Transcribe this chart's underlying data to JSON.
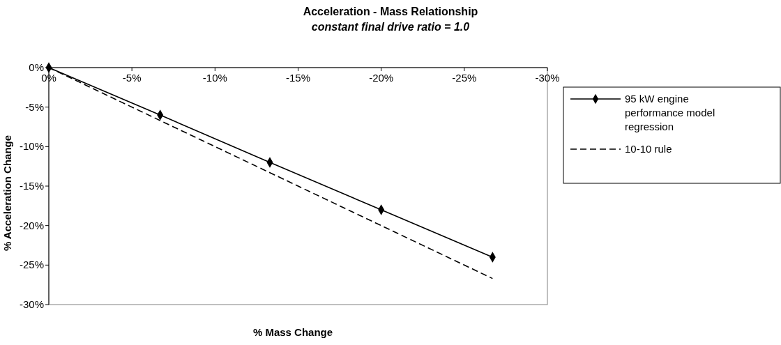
{
  "chart_data": {
    "type": "line",
    "title": "Acceleration - Mass Relationship",
    "subtitle": "constant final drive ratio = 1.0",
    "xlabel": "% Mass Change",
    "ylabel": "% Acceleration Change",
    "x": [
      0,
      -6.7,
      -13.3,
      -20,
      -26.7
    ],
    "series": [
      {
        "name": "95 kW engine performance model regression",
        "color": "#000000",
        "values": [
          0,
          -6,
          -12,
          -18,
          -24
        ],
        "marker": "diamond",
        "line_style": "solid"
      },
      {
        "name": "10-10 rule",
        "color": "#000000",
        "values": [
          0,
          -6.7,
          -13.3,
          -20,
          -26.7
        ],
        "marker": "none",
        "line_style": "dashed"
      }
    ],
    "xlim": [
      0,
      -30
    ],
    "xticks": [
      {
        "value": 0,
        "label": "0%"
      },
      {
        "value": -5,
        "label": "-5%"
      },
      {
        "value": -10,
        "label": "-10%"
      },
      {
        "value": -15,
        "label": "-15%"
      },
      {
        "value": -20,
        "label": "-20%"
      },
      {
        "value": -25,
        "label": "-25%"
      },
      {
        "value": -30,
        "label": "-30%"
      }
    ],
    "ylim": [
      -30,
      0
    ],
    "yticks": [
      {
        "value": 0,
        "label": "0%"
      },
      {
        "value": -5,
        "label": "-5%"
      },
      {
        "value": -10,
        "label": "-10%"
      },
      {
        "value": -15,
        "label": "-15%"
      },
      {
        "value": -20,
        "label": "-20%"
      },
      {
        "value": -25,
        "label": "-25%"
      },
      {
        "value": -30,
        "label": "-30%"
      }
    ],
    "grid": false,
    "legend": "right"
  }
}
